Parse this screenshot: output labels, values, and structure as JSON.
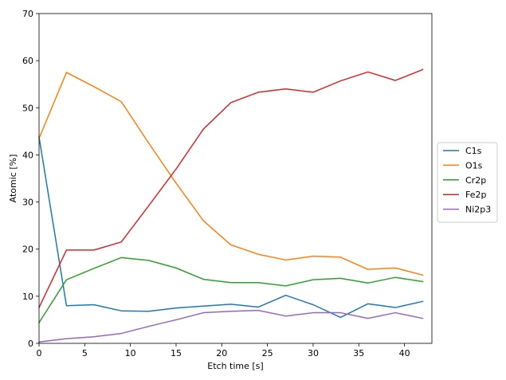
{
  "chart_data": {
    "type": "line",
    "title": "",
    "xlabel": "Etch time [s]",
    "ylabel": "Atomic [%]",
    "xlim": [
      0,
      43
    ],
    "ylim": [
      0,
      70
    ],
    "xticks": [
      0,
      5,
      10,
      15,
      20,
      25,
      30,
      35,
      40
    ],
    "yticks": [
      0,
      10,
      20,
      30,
      40,
      50,
      60,
      70
    ],
    "grid": false,
    "legend_position": "right",
    "x": [
      0,
      3,
      6,
      9,
      12,
      15,
      18,
      21,
      24,
      27,
      30,
      33,
      36,
      39,
      42
    ],
    "series": [
      {
        "name": "C1s",
        "color": "#1f77b4",
        "values": [
          43.8,
          8.0,
          8.2,
          6.9,
          6.8,
          7.5,
          7.9,
          8.3,
          7.7,
          10.2,
          8.2,
          5.5,
          8.4,
          7.6,
          8.9
        ]
      },
      {
        "name": "O1s",
        "color": "#ff7f0e",
        "values": [
          43.5,
          57.5,
          54.5,
          51.3,
          42.5,
          34.0,
          26.0,
          20.9,
          18.9,
          17.7,
          18.5,
          18.3,
          15.7,
          16.0,
          14.5
        ]
      },
      {
        "name": "Cr2p",
        "color": "#2ca02c",
        "values": [
          4.4,
          13.5,
          15.9,
          18.2,
          17.6,
          16.0,
          13.6,
          12.9,
          12.9,
          12.2,
          13.5,
          13.8,
          12.8,
          14.0,
          13.1
        ]
      },
      {
        "name": "Fe2p",
        "color": "#d62728",
        "values": [
          7.6,
          19.8,
          19.8,
          21.5,
          29.2,
          37.0,
          45.5,
          51.1,
          53.3,
          54.0,
          53.3,
          55.7,
          57.6,
          55.8,
          58.1
        ]
      },
      {
        "name": "Ni2p3",
        "color": "#9467bd",
        "values": [
          0.3,
          1.0,
          1.4,
          2.1,
          3.6,
          5.0,
          6.5,
          6.8,
          7.0,
          5.8,
          6.5,
          6.5,
          5.3,
          6.5,
          5.3
        ]
      }
    ]
  }
}
